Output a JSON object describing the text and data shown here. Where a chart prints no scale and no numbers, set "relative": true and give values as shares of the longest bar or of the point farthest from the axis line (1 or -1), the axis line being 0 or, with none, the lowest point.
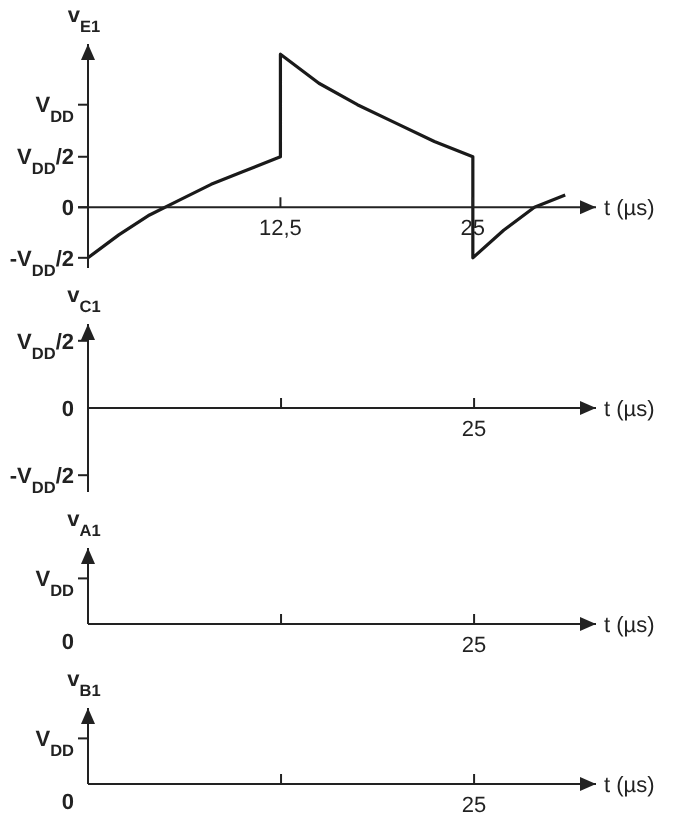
{
  "chart_data": [
    {
      "type": "line",
      "relative": true,
      "ylabel": "v$_{E1}$",
      "xlabel": "t (µs)",
      "xlim": [
        0,
        33
      ],
      "xticks": [
        {
          "value": 12.5,
          "label": "12,5"
        },
        25
      ],
      "marker": "none",
      "line_style": "solid",
      "annotations": [
        "V$_{DD}$",
        "V$_{DD}$/2",
        "0",
        "-V$_{DD}$/2"
      ],
      "series": [
        {
          "color": "#1a1a1a",
          "x": [
            0,
            2,
            4,
            6,
            8,
            10,
            12.5,
            12.5,
            15,
            17.5,
            20,
            22.5,
            25,
            25,
            27,
            29,
            31
          ],
          "values": [
            -0.33,
            -0.18,
            -0.05,
            0.05,
            0.15,
            0.23,
            0.33,
            1,
            0.81,
            0.67,
            0.55,
            0.43,
            0.33,
            -0.33,
            -0.15,
            0,
            0.08
          ]
        }
      ]
    },
    {
      "type": "other",
      "ylabel": "v$_{C1}$",
      "xlabel": "t (µs)",
      "annotations": [
        "V$_{DD}$/2",
        "0",
        "-V$_{DD}$/2",
        "25"
      ]
    },
    {
      "type": "other",
      "ylabel": "v$_{A1}$",
      "xlabel": "t (µs)",
      "annotations": [
        "V$_{DD}$",
        "0",
        "25"
      ]
    },
    {
      "type": "other",
      "ylabel": "v$_{B1}$",
      "xlabel": "t (µs)",
      "annotations": [
        "V$_{DD}$",
        "0",
        "25"
      ]
    }
  ]
}
